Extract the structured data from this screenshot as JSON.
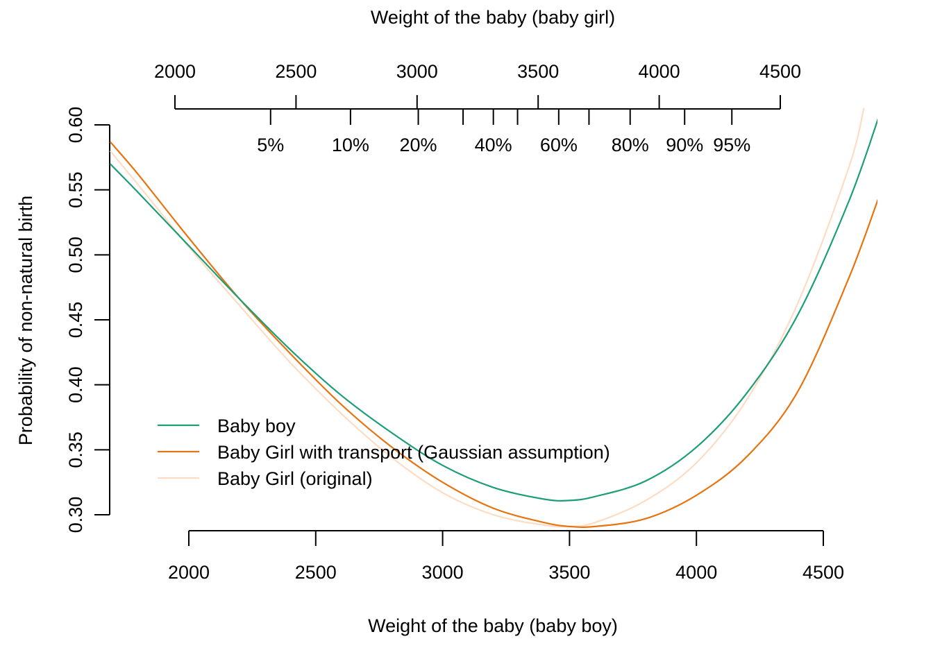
{
  "chart_data": {
    "type": "line",
    "x_bottom": {
      "label": "Weight of the baby (baby boy)",
      "ticks": [
        2000,
        2500,
        3000,
        3500,
        4000,
        4500
      ]
    },
    "x_top": {
      "label": "Weight of the baby (baby girl)",
      "ticks": [
        2000,
        2500,
        3000,
        3500,
        4000,
        4500
      ],
      "quantiles": [
        {
          "label": "5%",
          "value": 2395
        },
        {
          "label": "10%",
          "value": 2725
        },
        {
          "label": "20%",
          "value": 3005
        },
        {
          "label": "",
          "value": 3190
        },
        {
          "label": "40%",
          "value": 3315
        },
        {
          "label": "",
          "value": 3415
        },
        {
          "label": "60%",
          "value": 3585
        },
        {
          "label": "",
          "value": 3710
        },
        {
          "label": "80%",
          "value": 3880
        },
        {
          "label": "90%",
          "value": 4105
        },
        {
          "label": "95%",
          "value": 4300
        }
      ]
    },
    "y": {
      "label": "Probability of non-natural birth",
      "ticks": [
        0.3,
        0.35,
        0.4,
        0.45,
        0.5,
        0.55,
        0.6
      ],
      "ylim": [
        0.3,
        0.6
      ]
    },
    "xlim": [
      1690,
      4720
    ],
    "legend_position": "bottom-left",
    "series": [
      {
        "name": "Baby boy",
        "color": "#1b9e77",
        "x": [
          1690,
          1800,
          2000,
          2200,
          2400,
          2600,
          2800,
          3000,
          3200,
          3400,
          3500,
          3600,
          3800,
          4000,
          4200,
          4400,
          4600,
          4720
        ],
        "y": [
          0.57,
          0.548,
          0.507,
          0.466,
          0.427,
          0.392,
          0.363,
          0.338,
          0.321,
          0.312,
          0.311,
          0.314,
          0.326,
          0.352,
          0.394,
          0.454,
          0.541,
          0.607
        ]
      },
      {
        "name": "Baby Girl with transport (Gaussian assumption)",
        "color": "#e8730e",
        "x": [
          1690,
          1800,
          2000,
          2200,
          2400,
          2600,
          2800,
          3000,
          3200,
          3400,
          3500,
          3600,
          3800,
          4000,
          4200,
          4400,
          4600,
          4720
        ],
        "y": [
          0.587,
          0.562,
          0.513,
          0.466,
          0.424,
          0.385,
          0.352,
          0.325,
          0.305,
          0.294,
          0.291,
          0.291,
          0.297,
          0.315,
          0.345,
          0.395,
          0.482,
          0.545
        ]
      },
      {
        "name": "Baby Girl (original)",
        "color": "#fddcc3",
        "x": [
          1690,
          1800,
          2000,
          2200,
          2400,
          2600,
          2800,
          3000,
          3200,
          3400,
          3500,
          3600,
          3800,
          4000,
          4200,
          4400,
          4600,
          4660
        ],
        "y": [
          0.58,
          0.554,
          0.506,
          0.461,
          0.417,
          0.378,
          0.344,
          0.317,
          0.3,
          0.292,
          0.291,
          0.294,
          0.311,
          0.34,
          0.389,
          0.463,
          0.567,
          0.613
        ]
      }
    ]
  }
}
